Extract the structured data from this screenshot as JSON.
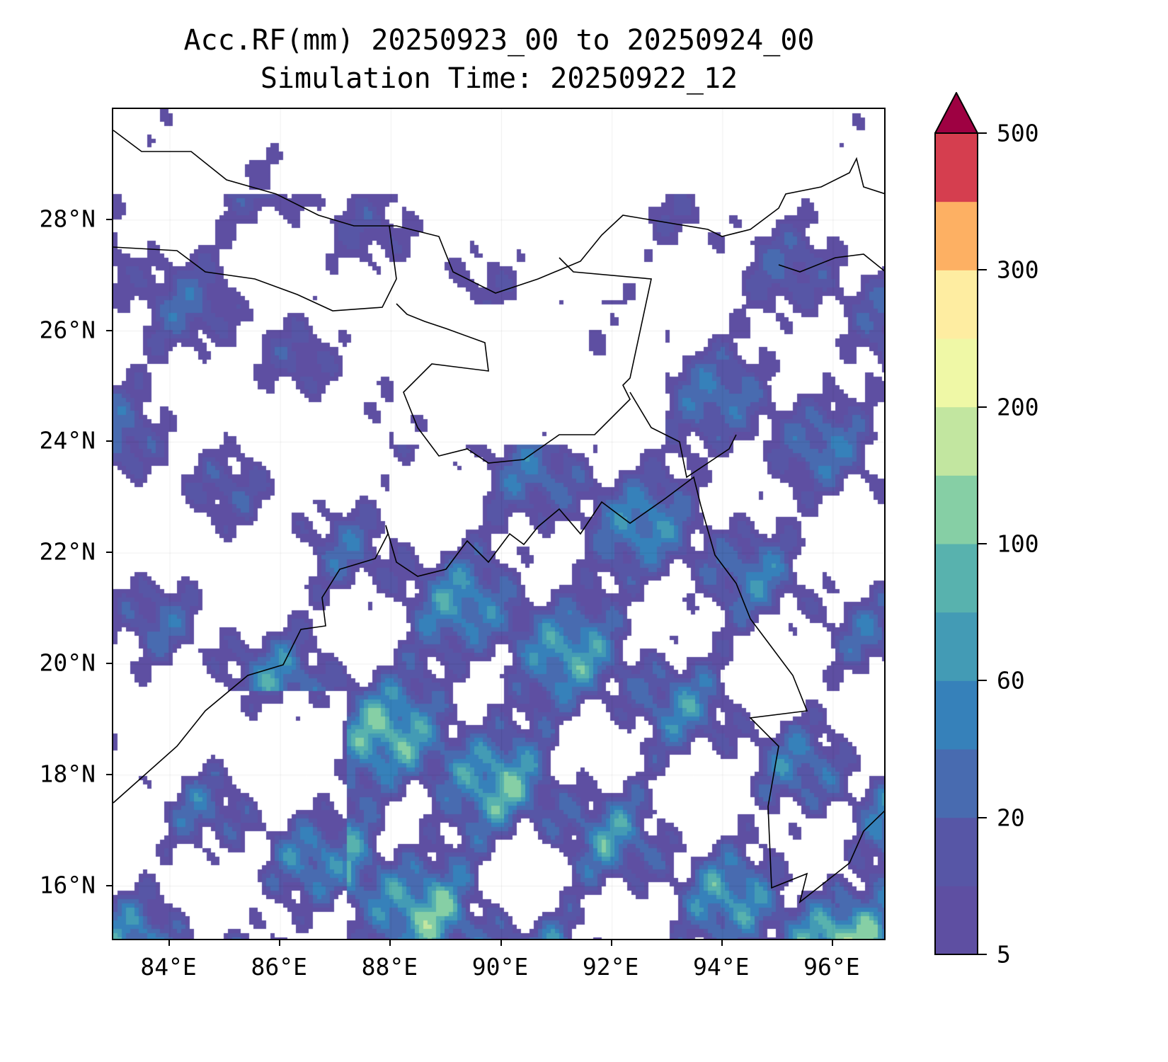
{
  "title": {
    "line1": "Acc.RF(mm) 20250923_00 to 20250924_00",
    "line2": "Simulation Time: 20250922_12"
  },
  "map": {
    "lon_range": [
      83,
      97
    ],
    "lat_range": [
      15,
      30
    ],
    "x_ticks": [
      "84°E",
      "86°E",
      "88°E",
      "90°E",
      "92°E",
      "94°E",
      "96°E"
    ],
    "x_tick_values": [
      84,
      86,
      88,
      90,
      92,
      94,
      96
    ],
    "y_ticks": [
      "16°N",
      "18°N",
      "20°N",
      "22°N",
      "24°N",
      "26°N",
      "28°N"
    ],
    "y_tick_values": [
      16,
      18,
      20,
      22,
      24,
      26,
      28
    ]
  },
  "colorbar": {
    "levels": [
      5,
      10,
      20,
      40,
      60,
      80,
      100,
      150,
      200,
      250,
      300,
      350,
      500
    ],
    "colors": [
      "#5e4fa2",
      "#5756a6",
      "#486bb0",
      "#3681ba",
      "#439bb5",
      "#58b2ae",
      "#86cfa5",
      "#c2e6a0",
      "#eff8a6",
      "#feeda1",
      "#fdb063",
      "#d53e4f"
    ],
    "extend_color": "#9e0142",
    "tick_labels": [
      "5",
      "20",
      "60",
      "100",
      "200",
      "300",
      "500"
    ],
    "tick_values": [
      5,
      20,
      60,
      100,
      200,
      300,
      500
    ]
  }
}
